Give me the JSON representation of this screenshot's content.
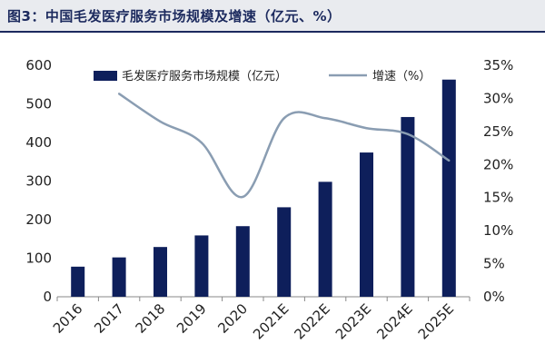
{
  "title": "图3：中国毛发医疗服务市场规模及增速（亿元、%）",
  "colors": {
    "bar": "#0e1f5b",
    "line": "#8a9db2",
    "axis": "#888888"
  },
  "chart_data": {
    "type": "bar",
    "categories": [
      "2016",
      "2017",
      "2018",
      "2019",
      "2020",
      "2021E",
      "2022E",
      "2023E",
      "2024E",
      "2025E"
    ],
    "series": [
      {
        "name": "毛发医疗服务市场规模（亿元）",
        "type": "bar",
        "axis": "left",
        "values": [
          78,
          102,
          129,
          159,
          183,
          232,
          298,
          374,
          466,
          563
        ]
      },
      {
        "name": "增速（%）",
        "type": "line",
        "axis": "right",
        "smooth": true,
        "values": [
          null,
          30.7,
          26.5,
          23.3,
          15.1,
          27.0,
          27.0,
          25.5,
          24.6,
          20.6
        ]
      }
    ],
    "y_left": {
      "ylim": [
        0,
        600
      ],
      "ticks": [
        "0",
        "100",
        "200",
        "300",
        "400",
        "500",
        "600"
      ]
    },
    "y_right": {
      "ylim": [
        0,
        35
      ],
      "ticks": [
        "0%",
        "5%",
        "10%",
        "15%",
        "20%",
        "25%",
        "30%",
        "35%"
      ]
    },
    "legend": "top",
    "grid": false
  }
}
